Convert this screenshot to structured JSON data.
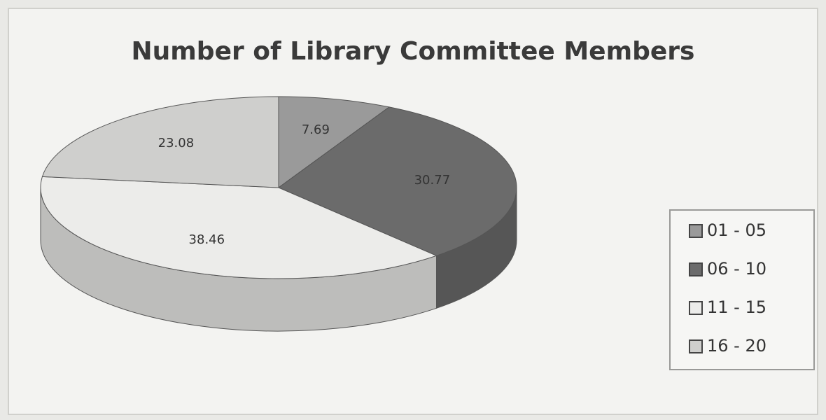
{
  "chart_data": {
    "type": "pie",
    "title": "Number of Library Committee Members",
    "categories": [
      "01 - 05",
      "06 - 10",
      "11 - 15",
      "16 - 20"
    ],
    "values": [
      7.69,
      30.77,
      38.46,
      23.08
    ],
    "colors": [
      "#9a9a9a",
      "#6b6b6b",
      "#ececea",
      "#cfcfcd"
    ],
    "legend": "right"
  }
}
